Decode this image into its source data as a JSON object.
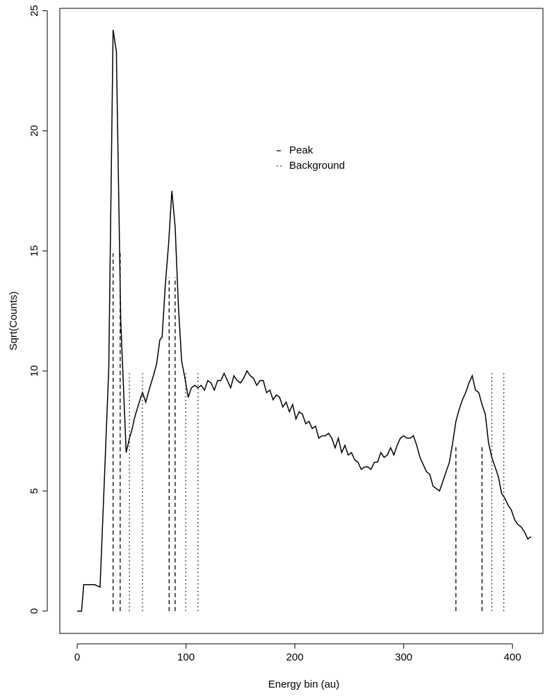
{
  "chart_data": {
    "type": "line",
    "x_label": "Energy bin (au)",
    "y_label": "Sqrt(Counts)",
    "xlim": [
      -16,
      428
    ],
    "ylim": [
      -0.93,
      25.1
    ],
    "xticks": [
      0,
      100,
      200,
      300,
      400
    ],
    "yticks": [
      0,
      5,
      10,
      15,
      20,
      25
    ],
    "legend_position": "top-center",
    "series": [
      {
        "x": [
          0,
          4,
          6,
          11,
          16,
          21,
          25,
          29,
          33,
          36,
          40,
          45,
          48,
          50,
          53,
          57,
          60,
          63,
          66,
          70,
          73,
          76,
          78,
          81,
          84,
          87,
          90,
          93,
          96,
          99,
          102,
          105,
          108,
          111,
          114,
          117,
          120,
          123,
          126,
          129,
          132,
          135,
          138,
          141,
          144,
          147,
          150,
          153,
          156,
          159,
          162,
          165,
          168,
          171,
          174,
          177,
          180,
          183,
          186,
          189,
          192,
          195,
          198,
          201,
          204,
          207,
          210,
          213,
          216,
          219,
          222,
          225,
          228,
          231,
          234,
          237,
          240,
          243,
          246,
          249,
          252,
          255,
          258,
          261,
          264,
          267,
          270,
          273,
          276,
          279,
          282,
          285,
          288,
          291,
          294,
          297,
          300,
          303,
          306,
          309,
          312,
          315,
          318,
          321,
          324,
          327,
          330,
          333,
          336,
          339,
          342,
          345,
          348,
          351,
          354,
          357,
          360,
          363,
          366,
          369,
          372,
          375,
          378,
          381,
          384,
          387,
          390,
          393,
          396,
          399,
          402,
          405,
          408,
          411,
          414,
          417
        ],
        "values": [
          0,
          0,
          1.1,
          1.1,
          1.1,
          1.0,
          5.5,
          10.1,
          24.2,
          23.3,
          12.1,
          6.6,
          7.2,
          7.5,
          8.1,
          8.7,
          9.1,
          8.7,
          9.2,
          9.8,
          10.3,
          11.3,
          11.4,
          13.6,
          15.3,
          17.5,
          16.0,
          12.7,
          10.4,
          9.7,
          8.9,
          9.3,
          9.4,
          9.3,
          9.4,
          9.2,
          9.6,
          9.5,
          9.2,
          9.6,
          9.6,
          9.9,
          9.6,
          9.3,
          9.8,
          9.6,
          9.5,
          9.7,
          10.0,
          9.8,
          9.7,
          9.4,
          9.6,
          9.6,
          9.1,
          9.2,
          8.8,
          9.0,
          8.9,
          8.5,
          8.7,
          8.3,
          8.6,
          8.0,
          8.3,
          8.2,
          7.8,
          7.9,
          7.6,
          7.7,
          7.2,
          7.3,
          7.3,
          7.4,
          7.2,
          6.8,
          7.2,
          6.6,
          6.9,
          6.5,
          6.6,
          6.3,
          6.2,
          5.9,
          6.0,
          6.0,
          5.9,
          6.2,
          6.2,
          6.6,
          6.4,
          6.5,
          6.8,
          6.5,
          6.9,
          7.2,
          7.3,
          7.2,
          7.2,
          7.3,
          6.9,
          6.4,
          6.1,
          5.8,
          5.7,
          5.2,
          5.1,
          5.0,
          5.4,
          5.8,
          6.2,
          7.0,
          7.9,
          8.4,
          8.8,
          9.1,
          9.5,
          9.8,
          9.2,
          9.1,
          8.6,
          8.2,
          7.0,
          6.4,
          6.0,
          5.6,
          4.9,
          4.7,
          4.4,
          4.2,
          3.8,
          3.6,
          3.5,
          3.3,
          3.0,
          3.1
        ],
        "color": "#000000",
        "line_style": "solid"
      },
      {
        "name": "Peak",
        "x": [
          33,
          39.5,
          84.5,
          90,
          348,
          372
        ],
        "values": [
          14.9,
          14.9,
          13.9,
          13.9,
          6.9,
          6.9
        ],
        "color": "#000000",
        "line_style": "dashed"
      },
      {
        "name": "Background",
        "x": [
          48,
          60,
          99.7,
          111,
          381,
          392
        ],
        "values": [
          9.9,
          9.9,
          9.9,
          9.9,
          9.9,
          9.9
        ],
        "color": "#000000",
        "line_style": "dotted"
      }
    ]
  }
}
